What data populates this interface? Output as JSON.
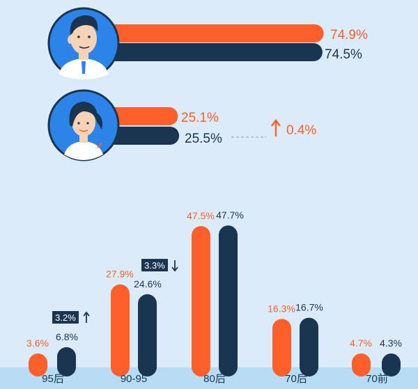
{
  "gender": {
    "male": {
      "orange_value": 74.9,
      "navy_value": 74.5,
      "orange_label": "74.9%",
      "navy_label": "74.5%"
    },
    "female": {
      "orange_value": 25.1,
      "navy_value": 25.5,
      "orange_label": "25.1%",
      "navy_label": "25.5%"
    },
    "change_label": "0.4%",
    "change_direction": "up"
  },
  "chart_data": {
    "type": "bar",
    "categories": [
      "95后",
      "90-95",
      "80后",
      "70后",
      "70前"
    ],
    "series": [
      {
        "values": [
          3.6,
          27.9,
          47.5,
          16.3,
          4.7
        ],
        "labels": [
          "3.6%",
          "27.9%",
          "47.5%",
          "16.3%",
          "4.7%"
        ]
      },
      {
        "values": [
          6.8,
          24.6,
          47.7,
          16.7,
          4.3
        ],
        "labels": [
          "6.8%",
          "24.6%",
          "47.7%",
          "16.7%",
          "4.3%"
        ]
      }
    ],
    "annotations": [
      {
        "category": "95后",
        "label": "3.2%",
        "direction": "up"
      },
      {
        "category": "90-95",
        "label": "3.3%",
        "direction": "down"
      }
    ]
  },
  "colors": {
    "background": "#dcebf9",
    "orange": "#ff5f2a",
    "navy": "#1a3550",
    "axis_band": "#b7dcf3",
    "avatar_bg": "#2c84e8"
  },
  "icons": [
    "male-avatar-icon",
    "female-avatar-icon",
    "arrow-up-icon",
    "arrow-down-icon"
  ]
}
